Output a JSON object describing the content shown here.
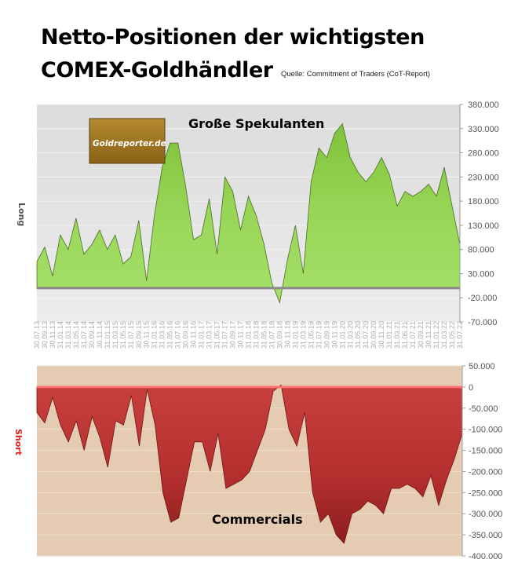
{
  "title_line1": "Netto-Positionen der wichtigsten",
  "title_line2": "COMEX-Goldhändler",
  "source": "Quelle: Commitment of Traders (CoT-Report)",
  "logo_text": "Goldreporter.de",
  "colors": {
    "speculators_fill": "#92d050",
    "commercials_fill": "#c0393b",
    "top_bg": "#e3e3e3",
    "bottom_bg": "#e6cbb3",
    "logo_bg": "#9c7420",
    "short_label": "#e02020"
  },
  "chart_data": [
    {
      "type": "area",
      "panel_label": "Große Spekulanten",
      "ylabel": "Long",
      "ylim": [
        -70000,
        380000
      ],
      "yticks": [
        "380.000",
        "330.000",
        "280.000",
        "230.000",
        "180.000",
        "130.000",
        "80.000",
        "30.000",
        "-20.000",
        "-70.000"
      ],
      "ytick_values": [
        380000,
        330000,
        280000,
        230000,
        180000,
        130000,
        80000,
        30000,
        -20000,
        -70000
      ],
      "grid": true,
      "x": [
        "30.07.13",
        "30.09.13",
        "30.11.13",
        "31.01.14",
        "31.03.14",
        "31.05.14",
        "31.07.14",
        "30.09.14",
        "30.11.14",
        "31.01.15",
        "31.03.15",
        "31.05.15",
        "31.07.15",
        "30.09.15",
        "30.11.15",
        "31.01.16",
        "31.03.16",
        "31.05.16",
        "31.07.16",
        "30.09.16",
        "30.11.16",
        "31.01.17",
        "31.03.17",
        "31.05.17",
        "31.07.17",
        "30.09.17",
        "30.11.17",
        "31.01.18",
        "31.03.18",
        "31.05.18",
        "31.07.18",
        "30.09.18",
        "30.11.18",
        "31.01.19",
        "31.03.19",
        "31.05.19",
        "31.07.19",
        "30.09.19",
        "30.11.19",
        "31.01.20",
        "31.03.20",
        "31.05.20",
        "31.07.20",
        "30.09.20",
        "30.11.20",
        "31.01.21",
        "31.03.21",
        "31.05.21",
        "31.07.21",
        "30.09.21",
        "30.11.21",
        "31.01.22",
        "31.03.22",
        "31.05.22",
        "31.07.22"
      ],
      "values": [
        55000,
        85000,
        25000,
        110000,
        80000,
        145000,
        70000,
        90000,
        120000,
        80000,
        110000,
        50000,
        65000,
        140000,
        15000,
        150000,
        250000,
        300000,
        300000,
        210000,
        100000,
        110000,
        185000,
        70000,
        230000,
        200000,
        120000,
        190000,
        150000,
        90000,
        10000,
        -30000,
        60000,
        130000,
        30000,
        220000,
        290000,
        270000,
        320000,
        340000,
        270000,
        240000,
        220000,
        240000,
        270000,
        235000,
        170000,
        200000,
        190000,
        200000,
        215000,
        190000,
        250000,
        170000,
        90000
      ]
    },
    {
      "type": "area",
      "panel_label": "Commercials",
      "ylabel": "Short",
      "ylim": [
        -400000,
        50000
      ],
      "yticks": [
        "50.000",
        "0",
        "-50.000",
        "-100.000",
        "-150.000",
        "-200.000",
        "-250.000",
        "-300.000",
        "-350.000",
        "-400.000"
      ],
      "ytick_values": [
        50000,
        0,
        -50000,
        -100000,
        -150000,
        -200000,
        -250000,
        -300000,
        -350000,
        -400000
      ],
      "grid": true,
      "values": [
        -60000,
        -85000,
        -25000,
        -90000,
        -130000,
        -80000,
        -150000,
        -70000,
        -120000,
        -190000,
        -80000,
        -90000,
        -20000,
        -140000,
        -5000,
        -90000,
        -250000,
        -320000,
        -310000,
        -220000,
        -130000,
        -130000,
        -200000,
        -110000,
        -240000,
        -230000,
        -220000,
        -200000,
        -150000,
        -100000,
        -10000,
        5000,
        -100000,
        -140000,
        -60000,
        -250000,
        -320000,
        -300000,
        -350000,
        -370000,
        -300000,
        -290000,
        -270000,
        -280000,
        -300000,
        -240000,
        -240000,
        -230000,
        -240000,
        -260000,
        -210000,
        -280000,
        -220000,
        -170000,
        -110000
      ]
    }
  ]
}
